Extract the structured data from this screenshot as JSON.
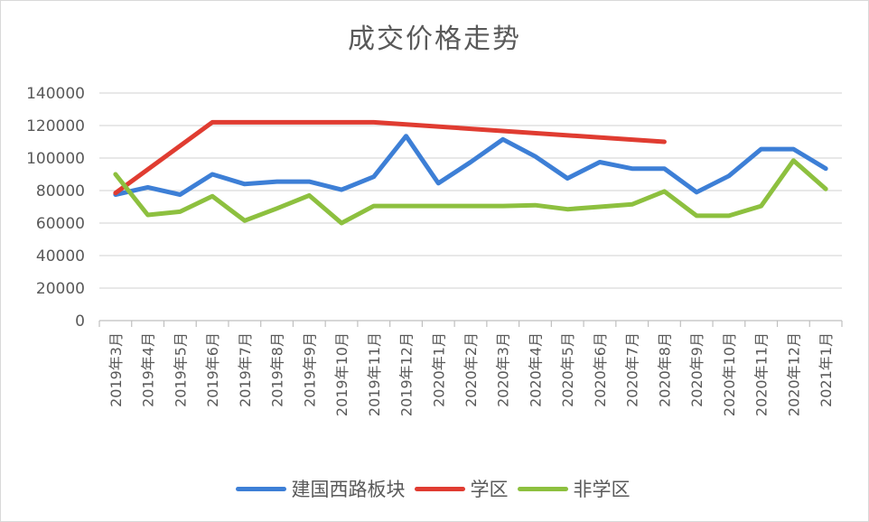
{
  "chart_data": {
    "type": "line",
    "title": "成交价格走势",
    "xlabel": "",
    "ylabel": "",
    "ylim": [
      0,
      140000
    ],
    "yticks": [
      0,
      20000,
      40000,
      60000,
      80000,
      100000,
      120000,
      140000
    ],
    "ytick_labels": [
      "0",
      "20000",
      "40000",
      "60000",
      "80000",
      "100000",
      "120000",
      "140000"
    ],
    "grid": true,
    "legend_position": "bottom",
    "categories": [
      "2019年3月",
      "2019年4月",
      "2019年5月",
      "2019年6月",
      "2019年7月",
      "2019年8月",
      "2019年9月",
      "2019年10月",
      "2019年11月",
      "2019年12月",
      "2020年1月",
      "2020年2月",
      "2020年3月",
      "2020年4月",
      "2020年5月",
      "2020年6月",
      "2020年7月",
      "2020年8月",
      "2020年9月",
      "2020年10月",
      "2020年11月",
      "2020年12月",
      "2021年1月"
    ],
    "series": [
      {
        "name": "建国西路板块",
        "color": "#3d7fd6",
        "values": [
          77500,
          82000,
          77500,
          90000,
          84000,
          85500,
          85500,
          80500,
          88500,
          113500,
          84500,
          97500,
          111500,
          101000,
          87500,
          97500,
          93500,
          93500,
          79000,
          89000,
          105500,
          105500,
          93500
        ]
      },
      {
        "name": "学区",
        "color": "#e03c31",
        "values": [
          78500,
          null,
          null,
          122000,
          122000,
          122000,
          122000,
          122000,
          122000,
          null,
          null,
          null,
          null,
          null,
          null,
          null,
          null,
          110000,
          null,
          null,
          null,
          null,
          null
        ]
      },
      {
        "name": "非学区",
        "color": "#8dc03f",
        "values": [
          90000,
          65000,
          67000,
          76500,
          61500,
          69000,
          77000,
          60000,
          70500,
          70500,
          70500,
          70500,
          70500,
          71000,
          68500,
          70000,
          71500,
          79500,
          64500,
          64500,
          70500,
          98500,
          81000
        ]
      }
    ]
  }
}
